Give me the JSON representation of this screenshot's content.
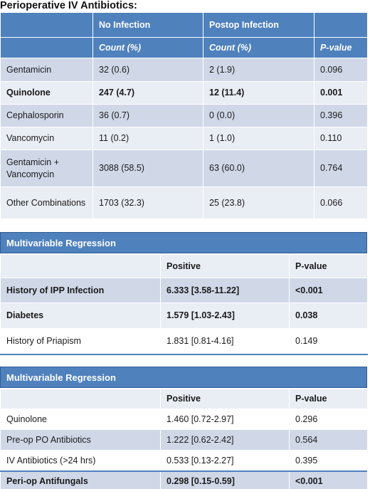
{
  "title": "Perioperative IV Antibiotics:",
  "t1": {
    "headers": [
      "",
      "No Infection",
      "Postop Infection",
      ""
    ],
    "subheaders": [
      "",
      "Count (%)",
      "Count (%)",
      "P-value"
    ],
    "rows": [
      {
        "name": "Gentamicin",
        "no": "32 (0.6)",
        "post": "2 (1.9)",
        "p": "0.096",
        "bold": false
      },
      {
        "name": "Quinolone",
        "no": "247 (4.7)",
        "post": "12 (11.4)",
        "p": "0.001",
        "bold": true
      },
      {
        "name": "Cephalosporin",
        "no": "36 (0.7)",
        "post": "0 (0.0)",
        "p": "0.396",
        "bold": false
      },
      {
        "name": "Vancomycin",
        "no": "11 (0.2)",
        "post": "1 (1.0)",
        "p": "0.110",
        "bold": false
      },
      {
        "name": "Gentamicin + Vancomycin",
        "no": "3088 (58.5)",
        "post": "63 (60.0)",
        "p": "0.764",
        "bold": false
      },
      {
        "name": "Other Combinations",
        "no": "1703 (32.3)",
        "post": "25 (23.8)",
        "p": "0.066",
        "bold": false
      }
    ]
  },
  "t2": {
    "banner": "Multivariable Regression",
    "headers": [
      "",
      "Positive",
      "P-value"
    ],
    "rows": [
      {
        "name": "History of IPP Infection",
        "pos": "6.333 [3.58-11.22]",
        "p": "<0.001",
        "bold": true
      },
      {
        "name": "Diabetes",
        "pos": "1.579 [1.03-2.43]",
        "p": "0.038",
        "bold": true
      },
      {
        "name": "History of Priapism",
        "pos": "1.831 [0.81-4.16]",
        "p": "0.149",
        "bold": false
      }
    ]
  },
  "t3": {
    "banner": "Multivariable Regression",
    "headers": [
      "",
      "Positive",
      "P-value"
    ],
    "rows": [
      {
        "name": "Quinolone",
        "pos": "1.460 [0.72-2.97]",
        "p": "0.296",
        "bold": false
      },
      {
        "name": "Pre-op PO Antibiotics",
        "pos": "1.222 [0.62-2.42]",
        "p": "0.564",
        "bold": false
      },
      {
        "name": "IV Antibiotics (>24 hrs)",
        "pos": "0.533 [0.13-2.27]",
        "p": "0.395",
        "bold": false
      },
      {
        "name": "Peri-op Antifungals",
        "pos": "0.298 [0.15-0.59]",
        "p": "<0.001",
        "bold": true
      }
    ]
  }
}
